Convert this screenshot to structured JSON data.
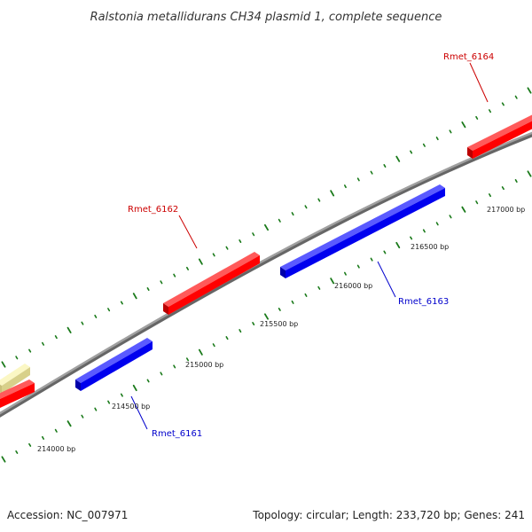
{
  "title": "Ralstonia metallidurans CH34 plasmid 1, complete sequence",
  "accession": "Accession: NC_007971",
  "summary": "Topology: circular; Length: 233,720 bp; Genes: 241",
  "colors": {
    "backbone": "#8a8a8a",
    "forward_gene": "#ff0000",
    "reverse_gene": "#0000ff",
    "other_feature": "#f2eea0",
    "tick": "#1a7a1a",
    "forward_label": "#cc0000",
    "reverse_label": "#0000cc"
  },
  "tick_labels": [
    "214000 bp",
    "214500 bp",
    "215000 bp",
    "215500 bp",
    "216000 bp",
    "216500 bp",
    "217000 bp"
  ],
  "genes": [
    {
      "name": "Rmet_6161",
      "strand": "reverse"
    },
    {
      "name": "Rmet_6162",
      "strand": "forward"
    },
    {
      "name": "Rmet_6163",
      "strand": "reverse"
    },
    {
      "name": "Rmet_6164",
      "strand": "forward"
    }
  ]
}
